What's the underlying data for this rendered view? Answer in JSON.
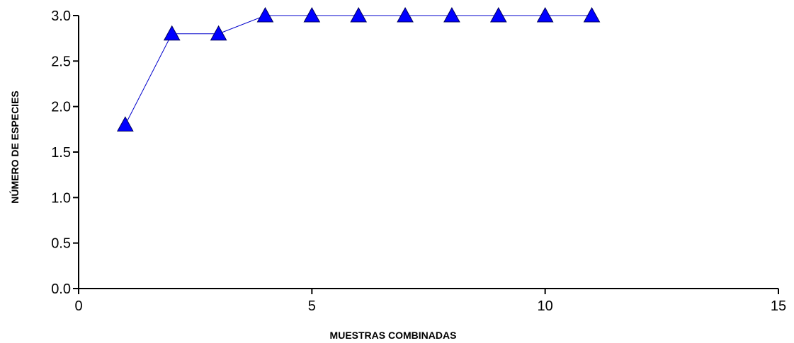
{
  "chart_data": {
    "type": "line",
    "xlabel": "MUESTRAS COMBINADAS",
    "ylabel": "NÚMERO DE ESPECIES",
    "xlim": [
      0,
      15
    ],
    "ylim": [
      0,
      3
    ],
    "xticks": [
      0,
      5,
      10,
      15
    ],
    "xtick_labels": [
      "0",
      "5",
      "10",
      "15"
    ],
    "yticks": [
      0,
      0.5,
      1,
      1.5,
      2,
      2.5,
      3
    ],
    "ytick_labels": [
      "0.0",
      "0.5",
      "1.0",
      "1.5",
      "2.0",
      "2.5",
      "3.0"
    ],
    "grid": false,
    "legend": "none",
    "series": [
      {
        "x": [
          1,
          2,
          3,
          4,
          5,
          6,
          7,
          8,
          9,
          10,
          11
        ],
        "values": [
          1.8,
          2.8,
          2.8,
          3.0,
          3.0,
          3.0,
          3.0,
          3.0,
          3.0,
          3.0,
          3.0
        ],
        "line_color": "#0000cc",
        "marker": "triangle",
        "marker_fill": "#0000ff",
        "marker_stroke": "#00005a"
      }
    ]
  }
}
